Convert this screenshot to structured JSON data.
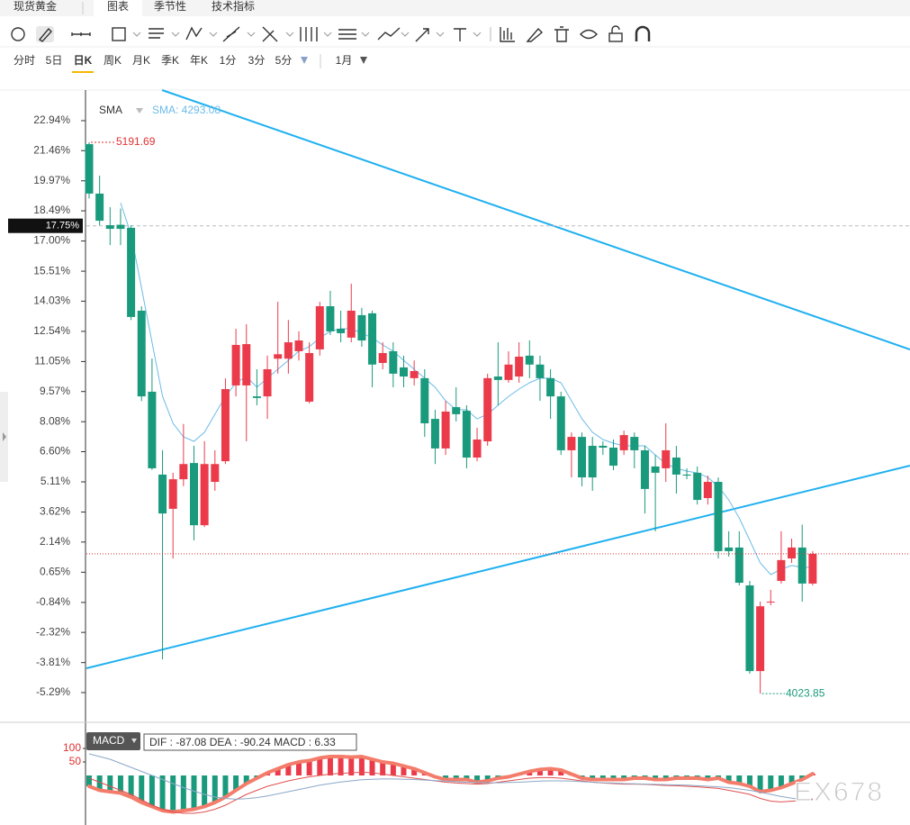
{
  "header": {
    "title": "现货黄金",
    "tabs": [
      "图表",
      "季节性",
      "技术指标"
    ]
  },
  "periods": [
    "分时",
    "5日",
    "日K",
    "周K",
    "月K",
    "季K",
    "年K",
    "1分",
    "3分",
    "5分"
  ],
  "range": "1月",
  "watermark": "EX678",
  "chart_data": {
    "type": "candlestick",
    "indicator_label": "SMA",
    "sma_label": "SMA: 4293.08",
    "high_label": "5191.69",
    "low_label": "4023.85",
    "crosshair": {
      "value": 17.75,
      "label": "17.75%"
    },
    "ylim": [
      -6.67,
      24.45
    ],
    "yticks": [
      {
        "value": 22.94,
        "label": "22.94%"
      },
      {
        "value": 21.46,
        "label": "21.46%"
      },
      {
        "value": 19.97,
        "label": "19.97%"
      },
      {
        "value": 18.49,
        "label": "18.49%"
      },
      {
        "value": 17,
        "label": "17.00%"
      },
      {
        "value": 15.51,
        "label": "15.51%"
      },
      {
        "value": 14.03,
        "label": "14.03%"
      },
      {
        "value": 12.54,
        "label": "12.54%"
      },
      {
        "value": 11.05,
        "label": "11.05%"
      },
      {
        "value": 9.57,
        "label": "9.57%"
      },
      {
        "value": 8.08,
        "label": "8.08%"
      },
      {
        "value": 6.6,
        "label": "6.60%"
      },
      {
        "value": 5.11,
        "label": "5.11%"
      },
      {
        "value": 3.62,
        "label": "3.62%"
      },
      {
        "value": 2.14,
        "label": "2.14%"
      },
      {
        "value": 0.65,
        "label": "0.65%"
      },
      {
        "value": -0.84,
        "label": "-0.84%"
      },
      {
        "value": -2.32,
        "label": "-2.32%"
      },
      {
        "value": -3.81,
        "label": "-3.81%"
      },
      {
        "value": -5.29,
        "label": "-5.29%"
      }
    ],
    "up_color": "#eb3b4b",
    "down_color": "#1a9a7c",
    "candles": {
      "open": [
        21.78,
        19.34,
        17.78,
        17.8,
        17.65,
        13.56,
        9.56,
        5.47,
        3.78,
        5.24,
        6.04,
        2.97,
        5.11,
        6.13,
        9.87,
        9.87,
        9.33,
        9.33,
        11.19,
        11.19,
        11.56,
        9.07,
        11.65,
        13.78,
        12.67,
        12.23,
        13.34,
        13.43,
        10.98,
        11.56,
        10.76,
        10.23,
        10.23,
        8.22,
        6.76,
        8.8,
        8.62,
        6.31,
        7.11,
        10.31,
        10.14,
        10.31,
        11.34,
        10.9,
        10.23,
        9.33,
        6.67,
        7.33,
        6.89,
        6.89,
        6.8,
        6.67,
        7.33,
        6.67,
        5.87,
        5.78,
        6.31,
        5.47,
        5.56,
        4.31,
        5.11,
        1.87,
        1.87,
        0.0,
        -4.23,
        -0.8,
        0.22,
        1.33,
        1.87,
        0.09
      ],
      "high": [
        21.87,
        20.23,
        18.67,
        18.6,
        17.78,
        13.78,
        11.2,
        6.67,
        5.56,
        7.97,
        6.89,
        7.12,
        6.67,
        10.22,
        12.67,
        12.89,
        10.67,
        11.34,
        14.0,
        13.1,
        12.54,
        12.0,
        14.0,
        14.54,
        13.56,
        14.89,
        13.7,
        13.56,
        12.0,
        12.0,
        11.34,
        11.1,
        10.67,
        8.67,
        9.11,
        9.78,
        8.89,
        7.78,
        10.45,
        12.0,
        11.56,
        12.0,
        12.09,
        11.34,
        10.67,
        9.56,
        7.55,
        7.55,
        7.33,
        7.11,
        7.2,
        7.64,
        7.55,
        6.89,
        6.44,
        8.0,
        6.89,
        5.78,
        5.87,
        5.42,
        5.33,
        2.67,
        2.67,
        0.22,
        -0.8,
        -0.22,
        2.67,
        2.31,
        3.0,
        1.69
      ],
      "low": [
        19.1,
        17.78,
        16.8,
        16.8,
        13.1,
        9.1,
        5.7,
        -3.65,
        1.33,
        4.9,
        2.22,
        2.88,
        4.67,
        5.99,
        9.33,
        7.11,
        8.89,
        8.22,
        10.45,
        10.45,
        11.1,
        8.98,
        11.34,
        12.36,
        12.0,
        12.0,
        11.78,
        9.78,
        10.67,
        9.78,
        9.78,
        9.87,
        7.33,
        5.99,
        6.44,
        8.09,
        5.78,
        6.13,
        6.89,
        8.89,
        10.0,
        10.0,
        10.23,
        9.11,
        8.22,
        6.44,
        5.33,
        4.89,
        4.67,
        6.44,
        5.69,
        6.44,
        5.78,
        3.55,
        2.67,
        5.11,
        4.53,
        5.24,
        3.99,
        3.99,
        1.33,
        1.42,
        0.0,
        -4.36,
        -5.34,
        -0.98,
        0.09,
        1.11,
        -0.8,
        0.0
      ],
      "close": [
        19.34,
        18.0,
        17.6,
        17.6,
        13.25,
        9.33,
        5.78,
        3.55,
        5.24,
        5.99,
        2.97,
        5.99,
        5.99,
        9.69,
        11.87,
        11.91,
        9.25,
        10.67,
        11.41,
        12.0,
        12.09,
        11.47,
        13.78,
        12.54,
        12.45,
        13.56,
        12.09,
        10.9,
        11.47,
        10.45,
        10.31,
        10.58,
        8.0,
        6.76,
        8.58,
        8.45,
        6.31,
        7.2,
        10.23,
        10.14,
        10.9,
        11.29,
        10.9,
        10.23,
        9.33,
        6.67,
        7.33,
        5.33,
        5.33,
        6.8,
        5.91,
        7.42,
        6.67,
        4.76,
        5.56,
        6.67,
        5.47,
        5.42,
        4.22,
        5.11,
        1.69,
        1.69,
        0.13,
        -4.23,
        -1.03,
        -0.8,
        1.25,
        1.87,
        0.09,
        1.56
      ]
    },
    "sma": {
      "color": "#6cbbe8",
      "values": [
        null,
        null,
        null,
        18.89,
        17.33,
        14.67,
        12.0,
        9.33,
        8.0,
        7.33,
        7.11,
        7.56,
        8.45,
        9.33,
        10.0,
        10.31,
        9.78,
        10.23,
        10.67,
        11.11,
        11.56,
        11.78,
        12.22,
        12.54,
        12.67,
        12.67,
        12.45,
        12.22,
        11.87,
        11.56,
        11.11,
        10.67,
        10.23,
        9.78,
        9.11,
        8.67,
        8.67,
        8.22,
        8.45,
        8.89,
        9.33,
        9.69,
        10.0,
        10.23,
        10.23,
        10.0,
        9.11,
        8.22,
        7.56,
        7.2,
        7.02,
        6.89,
        6.89,
        6.89,
        6.44,
        6.0,
        5.78,
        5.64,
        5.55,
        5.33,
        4.89,
        4.22,
        3.33,
        2.22,
        1.11,
        0.53,
        0.8,
        0.98,
        0.89,
        0.89
      ]
    },
    "macd": {
      "label": "MACD",
      "legend": "DIF : -87.08  DEA : -90.24  MACD : 6.33",
      "ylim": [
        -180,
        150
      ],
      "yticks": [
        100,
        50
      ],
      "histogram": [
        -40,
        -55,
        -60,
        -65,
        -80,
        -100,
        -115,
        -130,
        -135,
        -130,
        -125,
        -115,
        -100,
        -80,
        -55,
        -30,
        -10,
        10,
        25,
        40,
        50,
        55,
        65,
        70,
        70,
        68,
        70,
        60,
        50,
        45,
        35,
        25,
        10,
        -5,
        -15,
        -15,
        -15,
        -25,
        -20,
        -10,
        -5,
        5,
        15,
        22,
        25,
        20,
        5,
        -10,
        -15,
        -15,
        -15,
        -15,
        -10,
        -10,
        -15,
        -15,
        -10,
        -10,
        -10,
        -15,
        -10,
        -25,
        -30,
        -40,
        -60,
        -55,
        -45,
        -30,
        -15,
        6.33
      ],
      "dif": [
        -10,
        -25,
        -40,
        -55,
        -70,
        -90,
        -110,
        -125,
        -135,
        -140,
        -140,
        -135,
        -125,
        -110,
        -90,
        -70,
        -55,
        -40,
        -30,
        -20,
        -12,
        -5,
        0,
        5,
        8,
        10,
        12,
        10,
        5,
        0,
        -5,
        -10,
        -15,
        -20,
        -25,
        -28,
        -30,
        -32,
        -30,
        -25,
        -20,
        -15,
        -10,
        -8,
        -8,
        -10,
        -15,
        -20,
        -25,
        -28,
        -30,
        -32,
        -32,
        -33,
        -35,
        -37,
        -38,
        -40,
        -42,
        -45,
        -48,
        -55,
        -62,
        -70,
        -85,
        -95,
        -98,
        -95,
        -92,
        -87.08
      ],
      "dea": [
        80,
        70,
        60,
        45,
        30,
        15,
        0,
        -15,
        -30,
        -45,
        -58,
        -70,
        -80,
        -85,
        -88,
        -86,
        -82,
        -76,
        -68,
        -60,
        -52,
        -44,
        -36,
        -30,
        -24,
        -20,
        -16,
        -14,
        -13,
        -13,
        -14,
        -15,
        -17,
        -19,
        -21,
        -23,
        -25,
        -26,
        -27,
        -27,
        -26,
        -25,
        -23,
        -21,
        -20,
        -20,
        -21,
        -23,
        -25,
        -27,
        -28,
        -30,
        -31,
        -32,
        -33,
        -34,
        -35,
        -36,
        -38,
        -40,
        -42,
        -45,
        -50,
        -55,
        -62,
        -70,
        -78,
        -84,
        -88,
        -90.24
      ]
    }
  }
}
